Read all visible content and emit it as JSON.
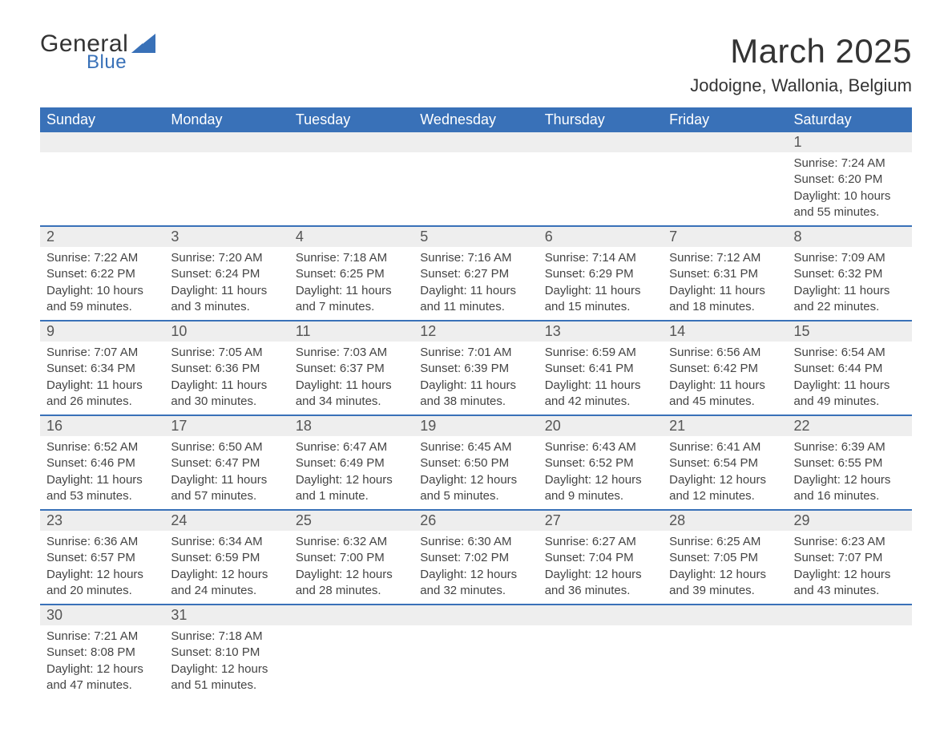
{
  "logo": {
    "line1": "General",
    "line2": "Blue",
    "triangle_color": "#3971b8",
    "text_color": "#333333"
  },
  "title": "March 2025",
  "location": "Jodoigne, Wallonia, Belgium",
  "day_headers": [
    "Sunday",
    "Monday",
    "Tuesday",
    "Wednesday",
    "Thursday",
    "Friday",
    "Saturday"
  ],
  "colors": {
    "header_bg": "#3971b8",
    "header_text": "#ffffff",
    "daynum_bg": "#eeeeee",
    "row_separator": "#3971b8",
    "body_text": "#444444",
    "page_bg": "#ffffff"
  },
  "weeks": [
    {
      "nums": [
        "",
        "",
        "",
        "",
        "",
        "",
        "1"
      ],
      "details": [
        "",
        "",
        "",
        "",
        "",
        "",
        "Sunrise: 7:24 AM\nSunset: 6:20 PM\nDaylight: 10 hours and 55 minutes."
      ]
    },
    {
      "nums": [
        "2",
        "3",
        "4",
        "5",
        "6",
        "7",
        "8"
      ],
      "details": [
        "Sunrise: 7:22 AM\nSunset: 6:22 PM\nDaylight: 10 hours and 59 minutes.",
        "Sunrise: 7:20 AM\nSunset: 6:24 PM\nDaylight: 11 hours and 3 minutes.",
        "Sunrise: 7:18 AM\nSunset: 6:25 PM\nDaylight: 11 hours and 7 minutes.",
        "Sunrise: 7:16 AM\nSunset: 6:27 PM\nDaylight: 11 hours and 11 minutes.",
        "Sunrise: 7:14 AM\nSunset: 6:29 PM\nDaylight: 11 hours and 15 minutes.",
        "Sunrise: 7:12 AM\nSunset: 6:31 PM\nDaylight: 11 hours and 18 minutes.",
        "Sunrise: 7:09 AM\nSunset: 6:32 PM\nDaylight: 11 hours and 22 minutes."
      ]
    },
    {
      "nums": [
        "9",
        "10",
        "11",
        "12",
        "13",
        "14",
        "15"
      ],
      "details": [
        "Sunrise: 7:07 AM\nSunset: 6:34 PM\nDaylight: 11 hours and 26 minutes.",
        "Sunrise: 7:05 AM\nSunset: 6:36 PM\nDaylight: 11 hours and 30 minutes.",
        "Sunrise: 7:03 AM\nSunset: 6:37 PM\nDaylight: 11 hours and 34 minutes.",
        "Sunrise: 7:01 AM\nSunset: 6:39 PM\nDaylight: 11 hours and 38 minutes.",
        "Sunrise: 6:59 AM\nSunset: 6:41 PM\nDaylight: 11 hours and 42 minutes.",
        "Sunrise: 6:56 AM\nSunset: 6:42 PM\nDaylight: 11 hours and 45 minutes.",
        "Sunrise: 6:54 AM\nSunset: 6:44 PM\nDaylight: 11 hours and 49 minutes."
      ]
    },
    {
      "nums": [
        "16",
        "17",
        "18",
        "19",
        "20",
        "21",
        "22"
      ],
      "details": [
        "Sunrise: 6:52 AM\nSunset: 6:46 PM\nDaylight: 11 hours and 53 minutes.",
        "Sunrise: 6:50 AM\nSunset: 6:47 PM\nDaylight: 11 hours and 57 minutes.",
        "Sunrise: 6:47 AM\nSunset: 6:49 PM\nDaylight: 12 hours and 1 minute.",
        "Sunrise: 6:45 AM\nSunset: 6:50 PM\nDaylight: 12 hours and 5 minutes.",
        "Sunrise: 6:43 AM\nSunset: 6:52 PM\nDaylight: 12 hours and 9 minutes.",
        "Sunrise: 6:41 AM\nSunset: 6:54 PM\nDaylight: 12 hours and 12 minutes.",
        "Sunrise: 6:39 AM\nSunset: 6:55 PM\nDaylight: 12 hours and 16 minutes."
      ]
    },
    {
      "nums": [
        "23",
        "24",
        "25",
        "26",
        "27",
        "28",
        "29"
      ],
      "details": [
        "Sunrise: 6:36 AM\nSunset: 6:57 PM\nDaylight: 12 hours and 20 minutes.",
        "Sunrise: 6:34 AM\nSunset: 6:59 PM\nDaylight: 12 hours and 24 minutes.",
        "Sunrise: 6:32 AM\nSunset: 7:00 PM\nDaylight: 12 hours and 28 minutes.",
        "Sunrise: 6:30 AM\nSunset: 7:02 PM\nDaylight: 12 hours and 32 minutes.",
        "Sunrise: 6:27 AM\nSunset: 7:04 PM\nDaylight: 12 hours and 36 minutes.",
        "Sunrise: 6:25 AM\nSunset: 7:05 PM\nDaylight: 12 hours and 39 minutes.",
        "Sunrise: 6:23 AM\nSunset: 7:07 PM\nDaylight: 12 hours and 43 minutes."
      ]
    },
    {
      "nums": [
        "30",
        "31",
        "",
        "",
        "",
        "",
        ""
      ],
      "details": [
        "Sunrise: 7:21 AM\nSunset: 8:08 PM\nDaylight: 12 hours and 47 minutes.",
        "Sunrise: 7:18 AM\nSunset: 8:10 PM\nDaylight: 12 hours and 51 minutes.",
        "",
        "",
        "",
        "",
        ""
      ]
    }
  ]
}
